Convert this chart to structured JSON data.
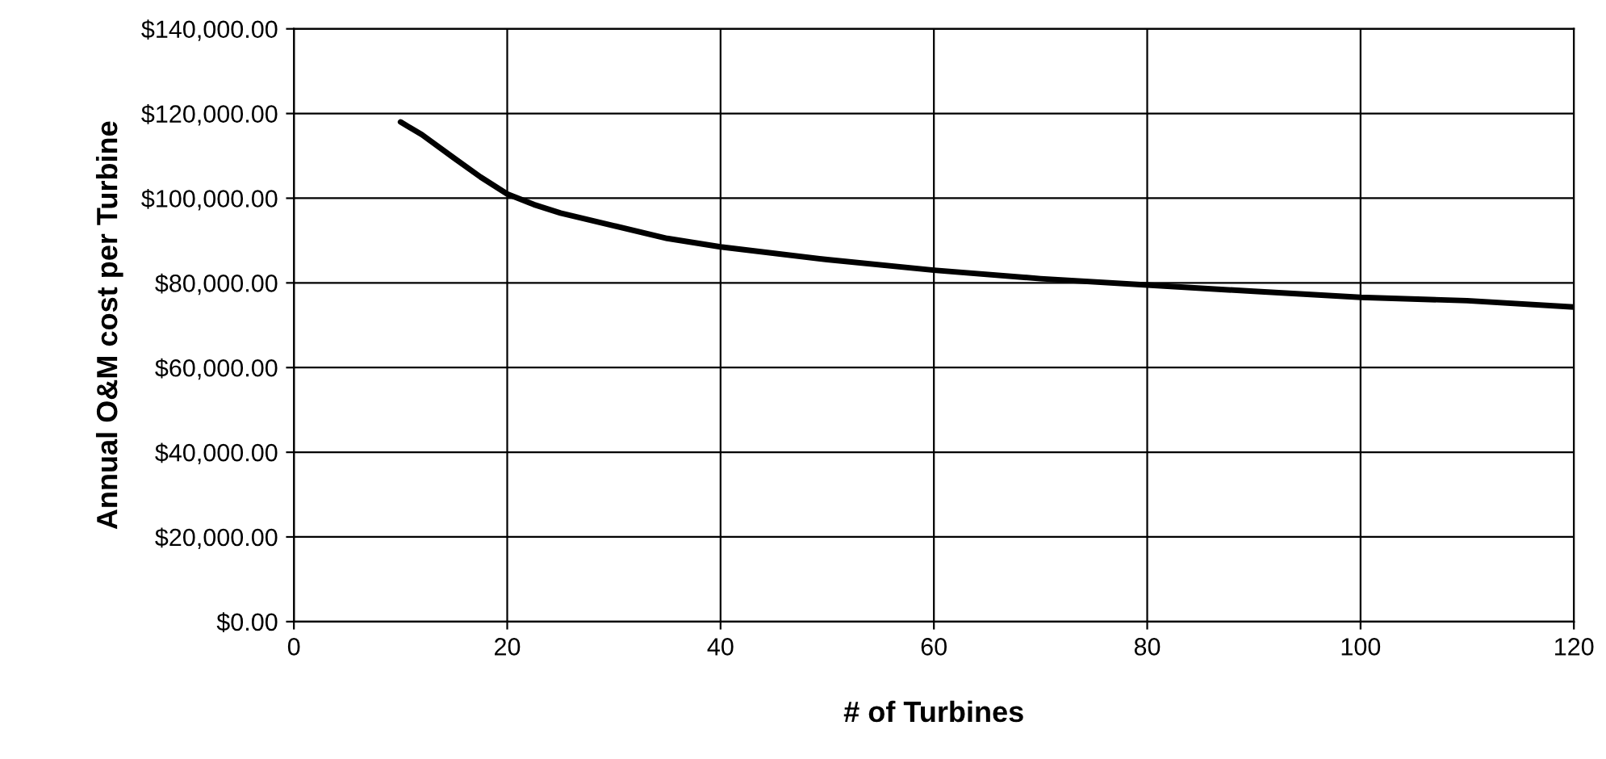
{
  "chart_data": {
    "type": "line",
    "xlabel": "# of Turbines",
    "ylabel": "Annual O&M cost per Turbine",
    "series": [
      {
        "color": "#000000",
        "x": [
          10,
          12,
          15,
          17.5,
          20,
          22.5,
          25,
          30,
          35,
          40,
          50,
          60,
          70,
          80,
          90,
          100,
          110,
          120
        ],
        "values": [
          118000,
          115000,
          109500,
          105000,
          101000,
          98500,
          96500,
          93500,
          90500,
          88500,
          85500,
          83000,
          81000,
          79500,
          78000,
          76600,
          75800,
          74300
        ]
      }
    ],
    "xlim": [
      0,
      120
    ],
    "xticks": [
      0,
      20,
      40,
      60,
      80,
      100,
      120
    ],
    "ylim": [
      0,
      140000
    ],
    "yticks": [
      {
        "value": 0,
        "label": "$0.00"
      },
      {
        "value": 20000,
        "label": "$20,000.00"
      },
      {
        "value": 40000,
        "label": "$40,000.00"
      },
      {
        "value": 60000,
        "label": "$60,000.00"
      },
      {
        "value": 80000,
        "label": "$80,000.00"
      },
      {
        "value": 100000,
        "label": "$100,000.00"
      },
      {
        "value": 120000,
        "label": "$120,000.00"
      },
      {
        "value": 140000,
        "label": "$140,000.00"
      }
    ],
    "grid": true,
    "marker": "none",
    "line_style": "solid",
    "legend": false
  }
}
